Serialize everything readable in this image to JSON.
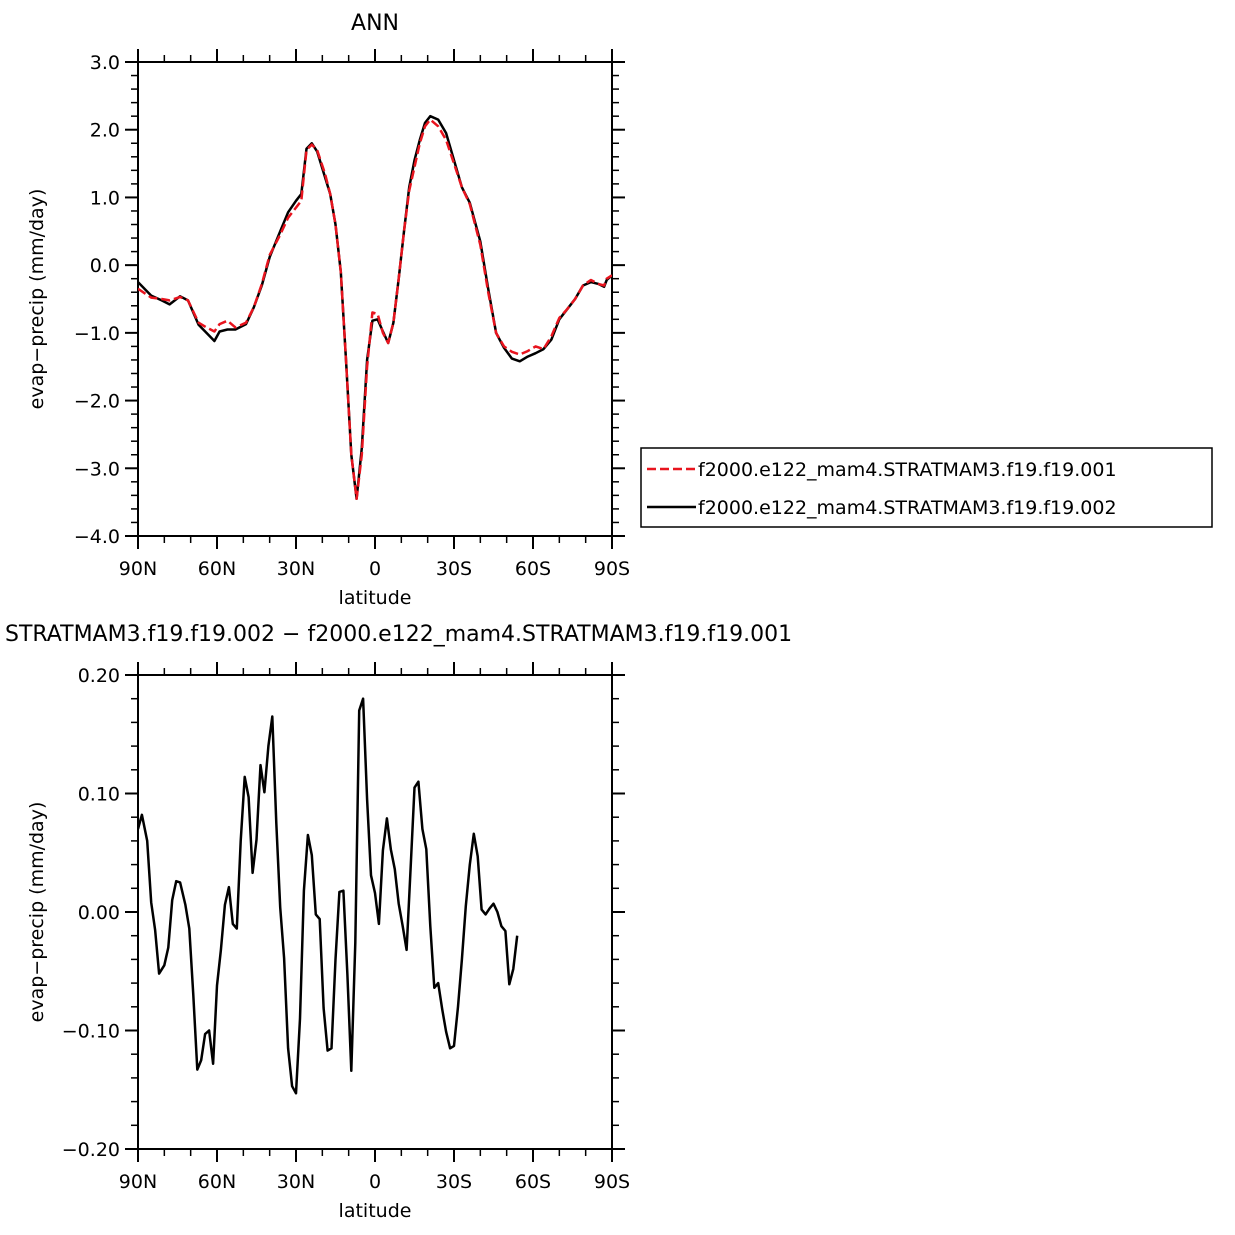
{
  "chart_data": [
    {
      "type": "line",
      "title": "ANN",
      "xlabel": "latitude",
      "ylabel": "evap−precip (mm/day)",
      "xlim": [
        90,
        -90
      ],
      "ylim": [
        -4.0,
        3.0
      ],
      "x_ticks": [
        {
          "value": 90,
          "label": "90N"
        },
        {
          "value": 60,
          "label": "60N"
        },
        {
          "value": 30,
          "label": "30N"
        },
        {
          "value": 0,
          "label": "0"
        },
        {
          "value": -30,
          "label": "30S"
        },
        {
          "value": -60,
          "label": "60S"
        },
        {
          "value": -90,
          "label": "90S"
        }
      ],
      "y_ticks": [
        {
          "value": 3.0,
          "label": "3.0"
        },
        {
          "value": 2.0,
          "label": "2.0"
        },
        {
          "value": 1.0,
          "label": "1.0"
        },
        {
          "value": 0.0,
          "label": "0.0"
        },
        {
          "value": -1.0,
          "label": "−1.0"
        },
        {
          "value": -2.0,
          "label": "−2.0"
        },
        {
          "value": -3.0,
          "label": "−3.0"
        },
        {
          "value": -4.0,
          "label": "−4.0"
        }
      ],
      "legend_position": "right",
      "series": [
        {
          "name": "f2000.e122_mam4.STRATMAM3.f19.f19.001",
          "color": "#e8141e",
          "dash": "dashed",
          "points": [
            [
              90,
              -0.35
            ],
            [
              85,
              -0.48
            ],
            [
              81,
              -0.5
            ],
            [
              78,
              -0.52
            ],
            [
              74,
              -0.47
            ],
            [
              71,
              -0.52
            ],
            [
              67,
              -0.85
            ],
            [
              64,
              -0.92
            ],
            [
              61,
              -0.98
            ],
            [
              59,
              -0.87
            ],
            [
              56,
              -0.82
            ],
            [
              53,
              -0.92
            ],
            [
              49,
              -0.85
            ],
            [
              46,
              -0.62
            ],
            [
              43,
              -0.28
            ],
            [
              40,
              0.15
            ],
            [
              36,
              0.45
            ],
            [
              33,
              0.7
            ],
            [
              30,
              0.85
            ],
            [
              28,
              0.95
            ],
            [
              26,
              1.7
            ],
            [
              24,
              1.78
            ],
            [
              22,
              1.7
            ],
            [
              19,
              1.35
            ],
            [
              17,
              1.05
            ],
            [
              15,
              0.6
            ],
            [
              13,
              -0.1
            ],
            [
              11,
              -1.4
            ],
            [
              9,
              -2.8
            ],
            [
              7,
              -3.45
            ],
            [
              5,
              -2.8
            ],
            [
              3,
              -1.5
            ],
            [
              1,
              -0.7
            ],
            [
              -1,
              -0.72
            ],
            [
              -3,
              -1.0
            ],
            [
              -5,
              -1.15
            ],
            [
              -7,
              -0.85
            ],
            [
              -9,
              -0.2
            ],
            [
              -11,
              0.5
            ],
            [
              -13,
              1.1
            ],
            [
              -15,
              1.45
            ],
            [
              -17,
              1.8
            ],
            [
              -19,
              2.05
            ],
            [
              -21,
              2.15
            ],
            [
              -24,
              2.05
            ],
            [
              -27,
              1.85
            ],
            [
              -30,
              1.5
            ],
            [
              -33,
              1.15
            ],
            [
              -36,
              0.9
            ],
            [
              -40,
              0.3
            ],
            [
              -43,
              -0.4
            ],
            [
              -46,
              -1.0
            ],
            [
              -49,
              -1.2
            ],
            [
              -52,
              -1.28
            ],
            [
              -55,
              -1.32
            ],
            [
              -58,
              -1.27
            ],
            [
              -61,
              -1.2
            ],
            [
              -64,
              -1.24
            ],
            [
              -67,
              -1.05
            ],
            [
              -70,
              -0.78
            ],
            [
              -73,
              -0.65
            ],
            [
              -76,
              -0.5
            ],
            [
              -79,
              -0.3
            ],
            [
              -82,
              -0.22
            ],
            [
              -85,
              -0.28
            ],
            [
              -87,
              -0.3
            ],
            [
              -88,
              -0.2
            ],
            [
              -90,
              -0.15
            ]
          ]
        },
        {
          "name": "f2000.e122_mam4.STRATMAM3.f19.f19.002",
          "color": "#000000",
          "dash": "solid",
          "points": [
            [
              90,
              -0.25
            ],
            [
              85,
              -0.45
            ],
            [
              81,
              -0.52
            ],
            [
              78,
              -0.58
            ],
            [
              74,
              -0.46
            ],
            [
              71,
              -0.52
            ],
            [
              67,
              -0.88
            ],
            [
              64,
              -1.0
            ],
            [
              61,
              -1.12
            ],
            [
              59,
              -0.98
            ],
            [
              56,
              -0.95
            ],
            [
              53,
              -0.95
            ],
            [
              49,
              -0.87
            ],
            [
              46,
              -0.62
            ],
            [
              43,
              -0.3
            ],
            [
              40,
              0.12
            ],
            [
              36,
              0.5
            ],
            [
              33,
              0.78
            ],
            [
              30,
              0.95
            ],
            [
              28,
              1.05
            ],
            [
              26,
              1.72
            ],
            [
              24,
              1.8
            ],
            [
              22,
              1.68
            ],
            [
              19,
              1.3
            ],
            [
              17,
              1.05
            ],
            [
              15,
              0.6
            ],
            [
              13,
              -0.1
            ],
            [
              11,
              -1.4
            ],
            [
              9,
              -2.8
            ],
            [
              7,
              -3.45
            ],
            [
              5,
              -2.7
            ],
            [
              3,
              -1.4
            ],
            [
              1,
              -0.82
            ],
            [
              -1,
              -0.8
            ],
            [
              -3,
              -0.98
            ],
            [
              -5,
              -1.15
            ],
            [
              -7,
              -0.85
            ],
            [
              -9,
              -0.2
            ],
            [
              -11,
              0.5
            ],
            [
              -13,
              1.15
            ],
            [
              -15,
              1.55
            ],
            [
              -17,
              1.85
            ],
            [
              -19,
              2.1
            ],
            [
              -21,
              2.2
            ],
            [
              -24,
              2.15
            ],
            [
              -27,
              1.95
            ],
            [
              -30,
              1.55
            ],
            [
              -33,
              1.15
            ],
            [
              -36,
              0.92
            ],
            [
              -40,
              0.35
            ],
            [
              -43,
              -0.35
            ],
            [
              -46,
              -1.0
            ],
            [
              -49,
              -1.22
            ],
            [
              -52,
              -1.38
            ],
            [
              -55,
              -1.42
            ],
            [
              -58,
              -1.35
            ],
            [
              -61,
              -1.3
            ],
            [
              -64,
              -1.24
            ],
            [
              -67,
              -1.1
            ],
            [
              -70,
              -0.8
            ],
            [
              -73,
              -0.65
            ],
            [
              -76,
              -0.5
            ],
            [
              -79,
              -0.3
            ],
            [
              -82,
              -0.25
            ],
            [
              -85,
              -0.28
            ],
            [
              -87,
              -0.32
            ],
            [
              -88,
              -0.22
            ],
            [
              -90,
              -0.15
            ]
          ]
        }
      ]
    },
    {
      "type": "line",
      "title": "STRATMAM3.f19.f19.002 − f2000.e122_mam4.STRATMAM3.f19.f19.001",
      "xlabel": "latitude",
      "ylabel": "evap−precip (mm/day)",
      "xlim": [
        90,
        -90
      ],
      "ylim": [
        -0.2,
        0.2
      ],
      "x_ticks": [
        {
          "value": 90,
          "label": "90N"
        },
        {
          "value": 60,
          "label": "60N"
        },
        {
          "value": 30,
          "label": "30N"
        },
        {
          "value": 0,
          "label": "0"
        },
        {
          "value": -30,
          "label": "30S"
        },
        {
          "value": -60,
          "label": "60S"
        },
        {
          "value": -90,
          "label": "90S"
        }
      ],
      "y_ticks": [
        {
          "value": 0.2,
          "label": "0.20"
        },
        {
          "value": 0.1,
          "label": "0.10"
        },
        {
          "value": 0.0,
          "label": "0.00"
        },
        {
          "value": -0.1,
          "label": "−0.10"
        },
        {
          "value": -0.2,
          "label": "−0.20"
        }
      ],
      "series": [
        {
          "color": "#000000",
          "dash": "solid",
          "points": [
            [
              90,
              0.07
            ],
            [
              88.5,
              0.082
            ],
            [
              86.5,
              0.06
            ],
            [
              85,
              0.008
            ],
            [
              83.5,
              -0.015
            ],
            [
              82,
              -0.052
            ],
            [
              80,
              -0.045
            ],
            [
              78.5,
              -0.03
            ],
            [
              77,
              0.01
            ],
            [
              75.5,
              0.026
            ],
            [
              74,
              0.025
            ],
            [
              72,
              0.006
            ],
            [
              70.5,
              -0.014
            ],
            [
              69,
              -0.07
            ],
            [
              67.5,
              -0.133
            ],
            [
              66,
              -0.125
            ],
            [
              64.5,
              -0.103
            ],
            [
              63,
              -0.1
            ],
            [
              61.5,
              -0.128
            ],
            [
              60,
              -0.062
            ],
            [
              58.5,
              -0.032
            ],
            [
              57,
              0.006
            ],
            [
              55.5,
              0.021
            ],
            [
              54,
              -0.01
            ],
            [
              52.5,
              -0.014
            ],
            [
              51,
              0.06
            ],
            [
              49.5,
              0.114
            ],
            [
              48,
              0.097
            ],
            [
              46.5,
              0.033
            ],
            [
              45,
              0.061
            ],
            [
              43.5,
              0.124
            ],
            [
              42,
              0.101
            ],
            [
              40.5,
              0.14
            ],
            [
              39,
              0.165
            ],
            [
              37.5,
              0.075
            ],
            [
              36,
              0.004
            ],
            [
              34.5,
              -0.039
            ],
            [
              33,
              -0.115
            ],
            [
              31.5,
              -0.147
            ],
            [
              30,
              -0.153
            ],
            [
              28.5,
              -0.09
            ],
            [
              27,
              0.018
            ],
            [
              25.5,
              0.065
            ],
            [
              24,
              0.048
            ],
            [
              22.5,
              -0.002
            ],
            [
              21,
              -0.006
            ],
            [
              19.5,
              -0.081
            ],
            [
              18,
              -0.117
            ],
            [
              16.5,
              -0.115
            ],
            [
              15,
              -0.04
            ],
            [
              13.5,
              0.017
            ],
            [
              12,
              0.018
            ],
            [
              10.5,
              -0.053
            ],
            [
              9,
              -0.134
            ],
            [
              7.5,
              -0.026
            ],
            [
              6,
              0.17
            ],
            [
              4.5,
              0.18
            ],
            [
              3,
              0.095
            ],
            [
              1.5,
              0.031
            ],
            [
              0,
              0.016
            ],
            [
              -1.5,
              -0.01
            ],
            [
              -3,
              0.052
            ],
            [
              -4.5,
              0.079
            ],
            [
              -6,
              0.053
            ],
            [
              -7.5,
              0.036
            ],
            [
              -9,
              0.007
            ],
            [
              -10.5,
              -0.012
            ],
            [
              -12,
              -0.032
            ],
            [
              -13.5,
              0.035
            ],
            [
              -15,
              0.105
            ],
            [
              -16.5,
              0.11
            ],
            [
              -18,
              0.07
            ],
            [
              -19.5,
              0.053
            ],
            [
              -21,
              -0.012
            ],
            [
              -22.5,
              -0.064
            ],
            [
              -24,
              -0.06
            ],
            [
              -25.5,
              -0.082
            ],
            [
              -27,
              -0.101
            ],
            [
              -28.5,
              -0.115
            ],
            [
              -30,
              -0.113
            ],
            [
              -31.5,
              -0.08
            ],
            [
              -33,
              -0.04
            ],
            [
              -34.5,
              0.005
            ],
            [
              -36,
              0.04
            ],
            [
              -37.5,
              0.066
            ],
            [
              -39,
              0.047
            ],
            [
              -40.5,
              0.002
            ],
            [
              -42,
              -0.002
            ],
            [
              -43.5,
              0.003
            ],
            [
              -45,
              0.007
            ],
            [
              -46.5,
              0.0
            ],
            [
              -48,
              -0.012
            ],
            [
              -49.5,
              -0.016
            ],
            [
              -51,
              -0.061
            ],
            [
              -52.5,
              -0.048
            ],
            [
              -54,
              -0.02
            ]
          ]
        }
      ]
    }
  ]
}
